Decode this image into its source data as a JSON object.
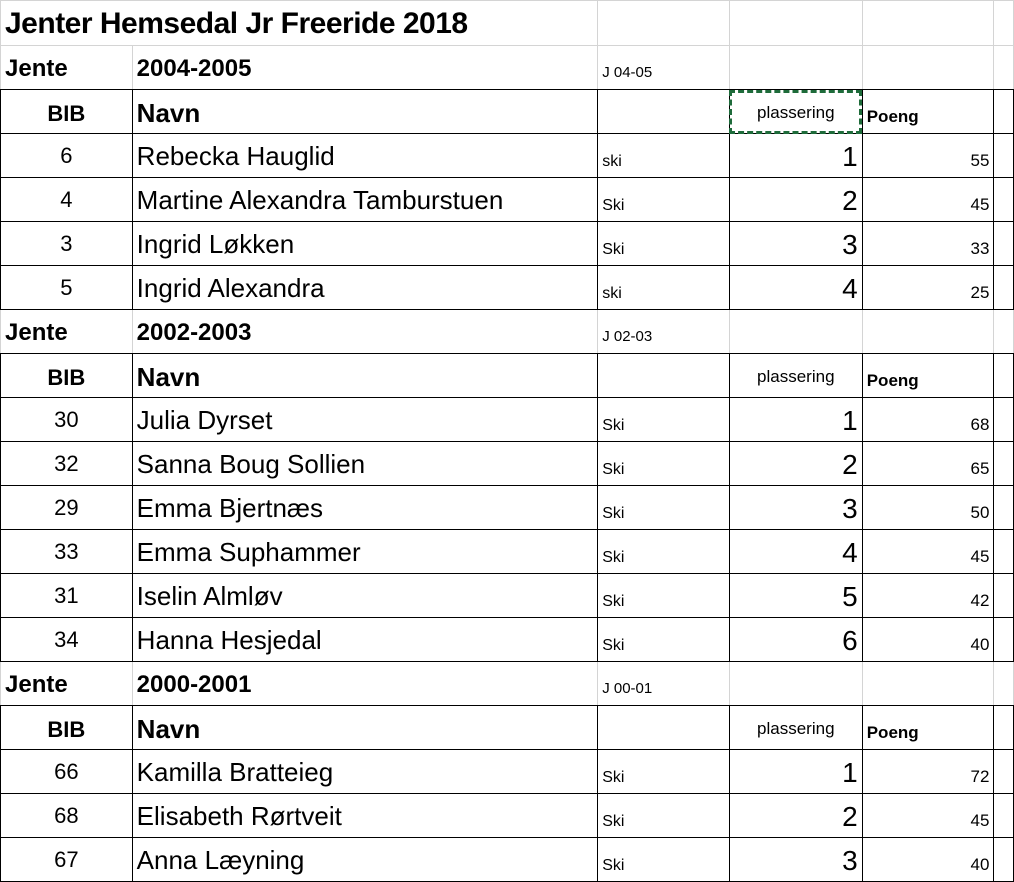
{
  "title": "Jenter Hemsedal Jr Freeride 2018",
  "selected_cell_color": "#1e6b3a",
  "groups": [
    {
      "label": "Jente",
      "years": "2004-2005",
      "code": "J 04-05",
      "headers": {
        "bib": "BIB",
        "navn": "Navn",
        "plassering": "plassering",
        "poeng": "Poeng"
      },
      "rows": [
        {
          "bib": "6",
          "name": "Rebecka Hauglid",
          "disc": "ski",
          "place": "1",
          "points": "55"
        },
        {
          "bib": "4",
          "name": "Martine Alexandra Tamburstuen",
          "disc": "Ski",
          "place": "2",
          "points": "45"
        },
        {
          "bib": "3",
          "name": "Ingrid Løkken",
          "disc": "Ski",
          "place": "3",
          "points": "33"
        },
        {
          "bib": "5",
          "name": "Ingrid Alexandra",
          "disc": "ski",
          "place": "4",
          "points": "25"
        }
      ]
    },
    {
      "label": "Jente",
      "years": "2002-2003",
      "code": "J 02-03",
      "headers": {
        "bib": "BIB",
        "navn": "Navn",
        "plassering": "plassering",
        "poeng": "Poeng"
      },
      "rows": [
        {
          "bib": "30",
          "name": "Julia Dyrset",
          "disc": "Ski",
          "place": "1",
          "points": "68"
        },
        {
          "bib": "32",
          "name": "Sanna Boug Sollien",
          "disc": "Ski",
          "place": "2",
          "points": "65"
        },
        {
          "bib": "29",
          "name": "Emma Bjertnæs",
          "disc": "Ski",
          "place": "3",
          "points": "50"
        },
        {
          "bib": "33",
          "name": "Emma Suphammer",
          "disc": "Ski",
          "place": "4",
          "points": "45"
        },
        {
          "bib": "31",
          "name": "Iselin Almløv",
          "disc": "Ski",
          "place": "5",
          "points": "42"
        },
        {
          "bib": "34",
          "name": "Hanna Hesjedal",
          "disc": "Ski",
          "place": "6",
          "points": "40"
        }
      ]
    },
    {
      "label": "Jente",
      "years": "2000-2001",
      "code": "J 00-01",
      "headers": {
        "bib": "BIB",
        "navn": "Navn",
        "plassering": "plassering",
        "poeng": "Poeng"
      },
      "rows": [
        {
          "bib": "66",
          "name": "Kamilla Bratteieg",
          "disc": "Ski",
          "place": "1",
          "points": "72"
        },
        {
          "bib": "68",
          "name": "Elisabeth Rørtveit",
          "disc": "Ski",
          "place": "2",
          "points": "45"
        },
        {
          "bib": "67",
          "name": "Anna Læyning",
          "disc": "Ski",
          "place": "3",
          "points": "40"
        }
      ]
    }
  ]
}
